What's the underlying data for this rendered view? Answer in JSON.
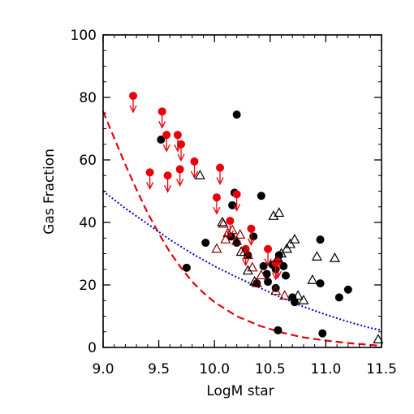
{
  "chart_data": {
    "type": "scatter",
    "title": "",
    "xlabel": "LogM star",
    "ylabel": "Gas Fraction",
    "xlim": [
      9.0,
      11.5
    ],
    "ylim": [
      0,
      100
    ],
    "xticks": [
      9.0,
      9.5,
      10.0,
      10.5,
      11.0,
      11.5
    ],
    "xtick_labels": [
      "9.0",
      "9.5",
      "10.0",
      "10.5",
      "11.0",
      "11.5"
    ],
    "yticks": [
      0,
      20,
      40,
      60,
      80,
      100
    ],
    "ytick_labels": [
      "0",
      "20",
      "40",
      "60",
      "80",
      "100"
    ],
    "grid": false,
    "colors": {
      "red": "#e8000b",
      "dark_red": "#8b0000",
      "black": "#000000",
      "blue": "#0000cc"
    },
    "series": [
      {
        "marker": "filled-circle",
        "color": "#000000",
        "points": [
          [
            9.52,
            66.5
          ],
          [
            9.75,
            25.5
          ],
          [
            9.92,
            33.5
          ],
          [
            10.16,
            45.5
          ],
          [
            10.18,
            49.5
          ],
          [
            10.2,
            74.5
          ],
          [
            10.15,
            35.5
          ],
          [
            10.2,
            33.5
          ],
          [
            10.3,
            29.5
          ],
          [
            10.35,
            35.5
          ],
          [
            10.38,
            20.5
          ],
          [
            10.42,
            48.5
          ],
          [
            10.44,
            26.0
          ],
          [
            10.48,
            21.0
          ],
          [
            10.47,
            23.5
          ],
          [
            10.52,
            26.5
          ],
          [
            10.55,
            25.0
          ],
          [
            10.57,
            5.5
          ],
          [
            10.58,
            29.5
          ],
          [
            10.62,
            26.0
          ],
          [
            10.64,
            23.0
          ],
          [
            10.7,
            16.0
          ],
          [
            10.72,
            14.5
          ],
          [
            10.95,
            34.5
          ],
          [
            10.95,
            20.5
          ],
          [
            10.97,
            4.5
          ],
          [
            11.12,
            16.0
          ],
          [
            11.2,
            18.5
          ],
          [
            10.55,
            19.0
          ]
        ]
      },
      {
        "marker": "filled-circle-upper-limit",
        "color": "#e8000b",
        "points": [
          [
            9.27,
            80.5
          ],
          [
            9.42,
            56.0
          ],
          [
            9.53,
            75.5
          ],
          [
            9.57,
            68.0
          ],
          [
            9.58,
            55.0
          ],
          [
            9.67,
            68.0
          ],
          [
            9.7,
            65.0
          ],
          [
            9.69,
            57.0
          ],
          [
            9.82,
            59.5
          ],
          [
            10.02,
            48.0
          ],
          [
            10.05,
            57.5
          ],
          [
            10.2,
            49.0
          ],
          [
            10.14,
            40.5
          ],
          [
            10.28,
            31.5
          ],
          [
            10.33,
            38.0
          ],
          [
            10.48,
            31.5
          ],
          [
            10.57,
            27.5
          ],
          [
            10.55,
            27.0
          ]
        ]
      },
      {
        "marker": "open-triangle",
        "color": "#8b0000",
        "points": [
          [
            10.02,
            31.5
          ],
          [
            10.08,
            39.5
          ],
          [
            10.12,
            36.5
          ],
          [
            10.1,
            34.5
          ],
          [
            10.16,
            37.5
          ],
          [
            10.2,
            34.0
          ],
          [
            10.23,
            36.0
          ],
          [
            10.27,
            30.5
          ],
          [
            10.3,
            29.5
          ],
          [
            10.34,
            25.5
          ],
          [
            10.38,
            20.5
          ],
          [
            10.42,
            23.0
          ],
          [
            10.55,
            18.0
          ],
          [
            10.63,
            16.5
          ]
        ]
      },
      {
        "marker": "open-triangle",
        "color": "#000000",
        "points": [
          [
            9.87,
            55.0
          ],
          [
            10.07,
            40.0
          ],
          [
            10.24,
            30.5
          ],
          [
            10.3,
            24.5
          ],
          [
            10.36,
            21.0
          ],
          [
            10.53,
            42.0
          ],
          [
            10.58,
            43.0
          ],
          [
            10.57,
            28.5
          ],
          [
            10.6,
            30.0
          ],
          [
            10.65,
            31.5
          ],
          [
            10.68,
            33.0
          ],
          [
            10.72,
            34.5
          ],
          [
            10.75,
            16.5
          ],
          [
            10.8,
            15.0
          ],
          [
            10.88,
            21.5
          ],
          [
            10.92,
            29.0
          ],
          [
            11.08,
            28.5
          ],
          [
            11.47,
            2.5
          ]
        ]
      }
    ],
    "lines": [
      {
        "style": "dashed",
        "color": "#e8000b",
        "points": [
          [
            9.0,
            75.5
          ],
          [
            9.1,
            67
          ],
          [
            9.2,
            58.5
          ],
          [
            9.3,
            50.5
          ],
          [
            9.4,
            43
          ],
          [
            9.5,
            36.5
          ],
          [
            9.6,
            30.5
          ],
          [
            9.7,
            25.5
          ],
          [
            9.8,
            21
          ],
          [
            9.9,
            17.5
          ],
          [
            10.0,
            14.5
          ],
          [
            10.2,
            10
          ],
          [
            10.4,
            7
          ],
          [
            10.6,
            4.8
          ],
          [
            10.8,
            3.2
          ],
          [
            11.0,
            2.2
          ],
          [
            11.2,
            1.4
          ],
          [
            11.4,
            0.8
          ],
          [
            11.5,
            0.5
          ]
        ]
      },
      {
        "style": "dotted",
        "color": "#0000cc",
        "points": [
          [
            9.0,
            50
          ],
          [
            9.2,
            44.5
          ],
          [
            9.4,
            39.5
          ],
          [
            9.6,
            34.5
          ],
          [
            9.8,
            30
          ],
          [
            10.0,
            26
          ],
          [
            10.2,
            22.5
          ],
          [
            10.4,
            19.2
          ],
          [
            10.6,
            16
          ],
          [
            10.8,
            13
          ],
          [
            11.0,
            10.5
          ],
          [
            11.2,
            8.2
          ],
          [
            11.4,
            6.2
          ],
          [
            11.5,
            5.5
          ]
        ]
      }
    ]
  }
}
